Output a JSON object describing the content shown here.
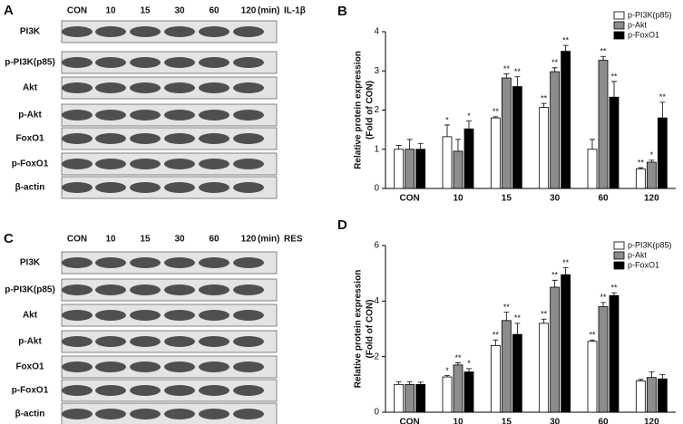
{
  "blots": [
    {
      "panel": "A",
      "lanes": [
        "CON",
        "10",
        "15",
        "30",
        "60",
        "120"
      ],
      "unit": "(min)",
      "treatment": "IL-1β",
      "rows": [
        "PI3K",
        "p-PI3K(p85)",
        "Akt",
        "p-Akt",
        "FoxO1",
        "p-FoxO1",
        "β-actin"
      ]
    },
    {
      "panel": "C",
      "lanes": [
        "CON",
        "10",
        "15",
        "30",
        "60",
        "120"
      ],
      "unit": "(min)",
      "treatment": "RES",
      "rows": [
        "PI3K",
        "p-PI3K(p85)",
        "Akt",
        "p-Akt",
        "FoxO1",
        "p-FoxO1",
        "β-actin"
      ]
    }
  ],
  "chart_data": [
    {
      "type": "bar",
      "panel": "B",
      "ylabel": "Relative protein expression",
      "ylabel2": "(Fold of CON)",
      "categories": [
        "CON",
        "10",
        "15",
        "30",
        "60",
        "120"
      ],
      "ylim": [
        0,
        4
      ],
      "yticks": [
        0,
        1,
        2,
        3,
        4
      ],
      "legend": "top-right",
      "series": [
        {
          "name": "p-PI3K(p85)",
          "color": "#ffffff",
          "values": [
            1,
            1.32,
            1.8,
            2.07,
            1.0,
            0.5
          ],
          "errors": [
            0.1,
            0.3,
            0.03,
            0.1,
            0.25,
            0.03
          ],
          "significance": [
            null,
            "*",
            "**",
            "**",
            null,
            "**"
          ]
        },
        {
          "name": "p-Akt",
          "color": "#8c8c8c",
          "values": [
            1,
            0.95,
            2.82,
            2.98,
            3.27,
            0.67
          ],
          "errors": [
            0.25,
            0.3,
            0.1,
            0.1,
            0.1,
            0.05
          ],
          "significance": [
            null,
            null,
            "**",
            "**",
            "**",
            "*"
          ]
        },
        {
          "name": "p-FoxO1",
          "color": "#000000",
          "values": [
            1,
            1.52,
            2.6,
            3.5,
            2.33,
            1.8
          ],
          "errors": [
            0.15,
            0.2,
            0.25,
            0.15,
            0.4,
            0.4
          ],
          "significance": [
            null,
            "*",
            "**",
            "**",
            "**",
            "**"
          ]
        }
      ]
    },
    {
      "type": "bar",
      "panel": "D",
      "ylabel": "Relative protein expression",
      "ylabel2": "(Fold of CON)",
      "categories": [
        "CON",
        "10",
        "15",
        "30",
        "60",
        "120"
      ],
      "ylim": [
        0,
        6
      ],
      "yticks": [
        0,
        2,
        4,
        6
      ],
      "legend": "top-right",
      "series": [
        {
          "name": "p-PI3K(p85)",
          "color": "#ffffff",
          "values": [
            1,
            1.27,
            2.4,
            3.2,
            2.55,
            1.13
          ],
          "errors": [
            0.1,
            0.05,
            0.2,
            0.15,
            0.05,
            0.05
          ],
          "significance": [
            null,
            "*",
            "**",
            "**",
            "**",
            null
          ]
        },
        {
          "name": "p-Akt",
          "color": "#8c8c8c",
          "values": [
            1,
            1.7,
            3.3,
            4.5,
            3.8,
            1.25
          ],
          "errors": [
            0.1,
            0.08,
            0.3,
            0.25,
            0.15,
            0.2
          ],
          "significance": [
            null,
            "**",
            "**",
            "**",
            "**",
            null
          ]
        },
        {
          "name": "p-FoxO1",
          "color": "#000000",
          "values": [
            1,
            1.45,
            2.8,
            4.95,
            4.2,
            1.2
          ],
          "errors": [
            0.08,
            0.12,
            0.4,
            0.25,
            0.1,
            0.15
          ],
          "significance": [
            null,
            "*",
            "**",
            "**",
            "**",
            null
          ]
        }
      ]
    }
  ]
}
